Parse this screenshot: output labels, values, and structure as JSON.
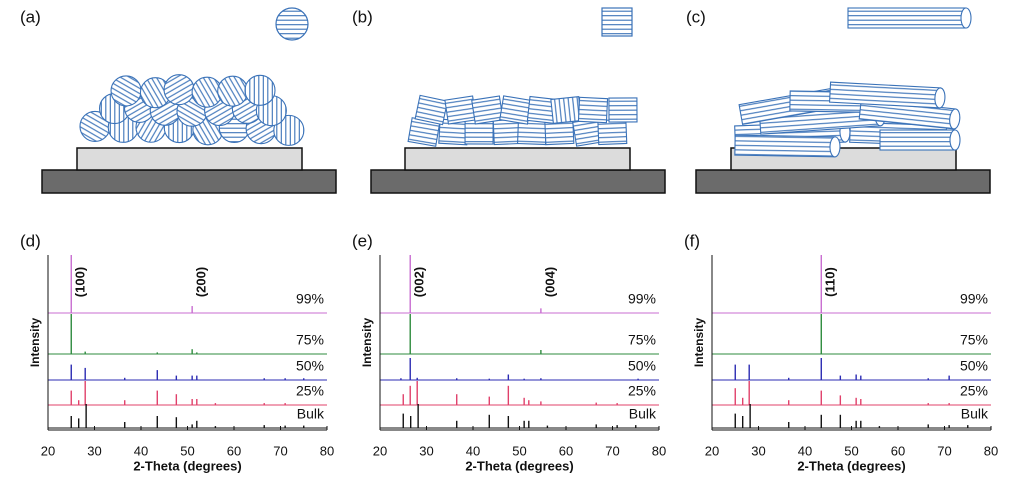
{
  "diagrams": [
    {
      "label": "(a)"
    },
    {
      "label": "(b)"
    },
    {
      "label": "(c)"
    }
  ],
  "chart_data": [
    {
      "type": "line",
      "panel_label": "(d)",
      "xlabel": "2-Theta (degrees)",
      "ylabel": "Intensity",
      "xlim": [
        20,
        80
      ],
      "xticks": [
        20,
        30,
        40,
        50,
        60,
        70,
        80
      ],
      "annotations": [
        {
          "text": "(100)",
          "x": 25
        },
        {
          "text": "(200)",
          "x": 51
        }
      ],
      "series": [
        {
          "name": "99%",
          "color": "#c86cd0",
          "x": [
            25,
            51
          ],
          "values": [
            100,
            12
          ]
        },
        {
          "name": "75%",
          "color": "#2e8b3e",
          "x": [
            25,
            28,
            43.5,
            51,
            52
          ],
          "values": [
            100,
            6,
            4,
            12,
            4
          ]
        },
        {
          "name": "50%",
          "color": "#2b2bb3",
          "x": [
            25,
            28,
            36.5,
            43.5,
            47.6,
            51,
            52,
            66.5,
            71,
            75
          ],
          "values": [
            70,
            55,
            10,
            45,
            20,
            20,
            20,
            8,
            8,
            8
          ]
        },
        {
          "name": "25%",
          "color": "#e0406a",
          "x": [
            25,
            26.6,
            28,
            36.5,
            43.5,
            47.6,
            51,
            52,
            56,
            66.5,
            71
          ],
          "values": [
            60,
            20,
            100,
            20,
            60,
            45,
            25,
            25,
            8,
            8,
            8
          ]
        },
        {
          "name": "Bulk",
          "color": "#111111",
          "x": [
            25,
            26.6,
            28.2,
            36.5,
            43.5,
            47.6,
            51,
            52,
            56,
            66.5,
            71,
            75
          ],
          "values": [
            50,
            40,
            100,
            25,
            50,
            45,
            15,
            30,
            8,
            12,
            10,
            10
          ]
        }
      ]
    },
    {
      "type": "line",
      "panel_label": "(e)",
      "xlabel": "2-Theta (degrees)",
      "ylabel": "Intensity",
      "xlim": [
        20,
        80
      ],
      "xticks": [
        20,
        30,
        40,
        50,
        60,
        70,
        80
      ],
      "annotations": [
        {
          "text": "(002)",
          "x": 26.5
        },
        {
          "text": "(004)",
          "x": 54.6
        }
      ],
      "series": [
        {
          "name": "99%",
          "color": "#c86cd0",
          "x": [
            26.5,
            54.6
          ],
          "values": [
            100,
            8
          ]
        },
        {
          "name": "75%",
          "color": "#2e8b3e",
          "x": [
            26.5,
            54.6
          ],
          "values": [
            100,
            10
          ]
        },
        {
          "name": "50%",
          "color": "#2b2bb3",
          "x": [
            24.5,
            26.5,
            28,
            36.5,
            43.5,
            47.6,
            51,
            54.6,
            75.5
          ],
          "values": [
            8,
            100,
            10,
            8,
            6,
            25,
            6,
            8,
            6
          ]
        },
        {
          "name": "25%",
          "color": "#e0406a",
          "x": [
            25,
            26.5,
            28,
            36.5,
            43.5,
            47.6,
            51,
            52,
            54.6,
            66.5,
            71
          ],
          "values": [
            45,
            80,
            100,
            45,
            35,
            80,
            30,
            20,
            15,
            10,
            8
          ]
        },
        {
          "name": "Bulk",
          "color": "#111111",
          "x": [
            25,
            26.6,
            28.2,
            36.5,
            43.5,
            47.6,
            51,
            52,
            56,
            66.5,
            71,
            75
          ],
          "values": [
            60,
            50,
            100,
            30,
            55,
            50,
            30,
            30,
            10,
            15,
            12,
            12
          ]
        }
      ]
    },
    {
      "type": "line",
      "panel_label": "(f)",
      "xlabel": "2-Theta (degrees)",
      "ylabel": "Intensity",
      "xlim": [
        20,
        80
      ],
      "xticks": [
        20,
        30,
        40,
        50,
        60,
        70,
        80
      ],
      "annotations": [
        {
          "text": "(110)",
          "x": 43.5
        }
      ],
      "series": [
        {
          "name": "99%",
          "color": "#c86cd0",
          "x": [
            43.5
          ],
          "values": [
            100
          ]
        },
        {
          "name": "75%",
          "color": "#2e8b3e",
          "x": [
            43.5
          ],
          "values": [
            100
          ]
        },
        {
          "name": "50%",
          "color": "#2b2bb3",
          "x": [
            25,
            28,
            36.5,
            43.5,
            47.6,
            51,
            52,
            66.5,
            71
          ],
          "values": [
            70,
            70,
            10,
            100,
            20,
            25,
            20,
            8,
            20
          ]
        },
        {
          "name": "25%",
          "color": "#e0406a",
          "x": [
            25,
            26.6,
            28,
            36.5,
            43.5,
            47.6,
            51,
            52,
            66.5,
            71
          ],
          "values": [
            70,
            30,
            100,
            20,
            60,
            40,
            30,
            25,
            8,
            8
          ]
        },
        {
          "name": "Bulk",
          "color": "#111111",
          "x": [
            25,
            26.6,
            28.2,
            36.5,
            43.5,
            47.6,
            51,
            52,
            56,
            66.5,
            71,
            75
          ],
          "values": [
            60,
            50,
            100,
            25,
            55,
            55,
            30,
            30,
            8,
            15,
            12,
            12
          ]
        }
      ]
    }
  ]
}
